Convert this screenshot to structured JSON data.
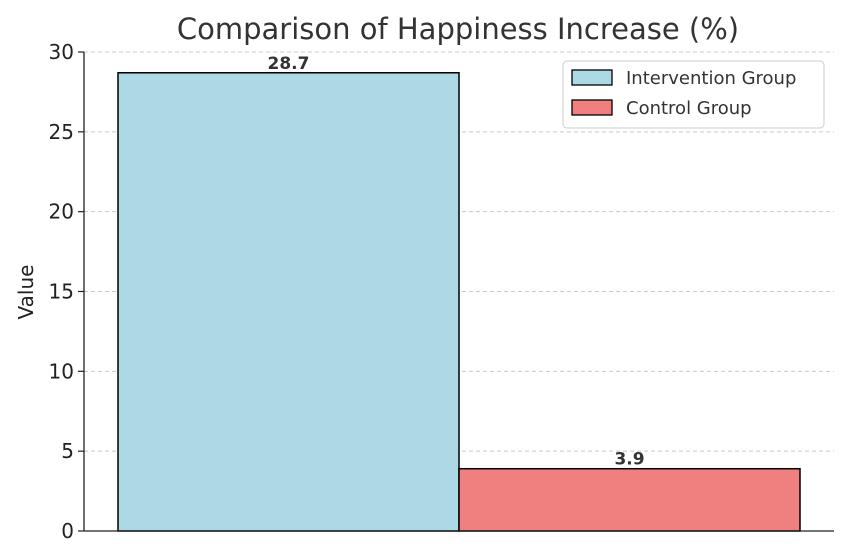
{
  "chart_data": {
    "type": "bar",
    "title": "Comparison of Happiness Increase (%)",
    "xlabel": "",
    "ylabel": "Value",
    "ylim": [
      0,
      30
    ],
    "yticks": [
      0,
      5,
      10,
      15,
      20,
      25,
      30
    ],
    "grid": true,
    "legend_position": "top-right",
    "series": [
      {
        "name": "Intervention Group",
        "value": 28.7,
        "label": "28.7",
        "color": "#add8e6"
      },
      {
        "name": "Control Group",
        "value": 3.9,
        "label": "3.9",
        "color": "#f08080"
      }
    ],
    "bar_edge_color": "#000000",
    "grid_color": "#c8c8c8"
  }
}
